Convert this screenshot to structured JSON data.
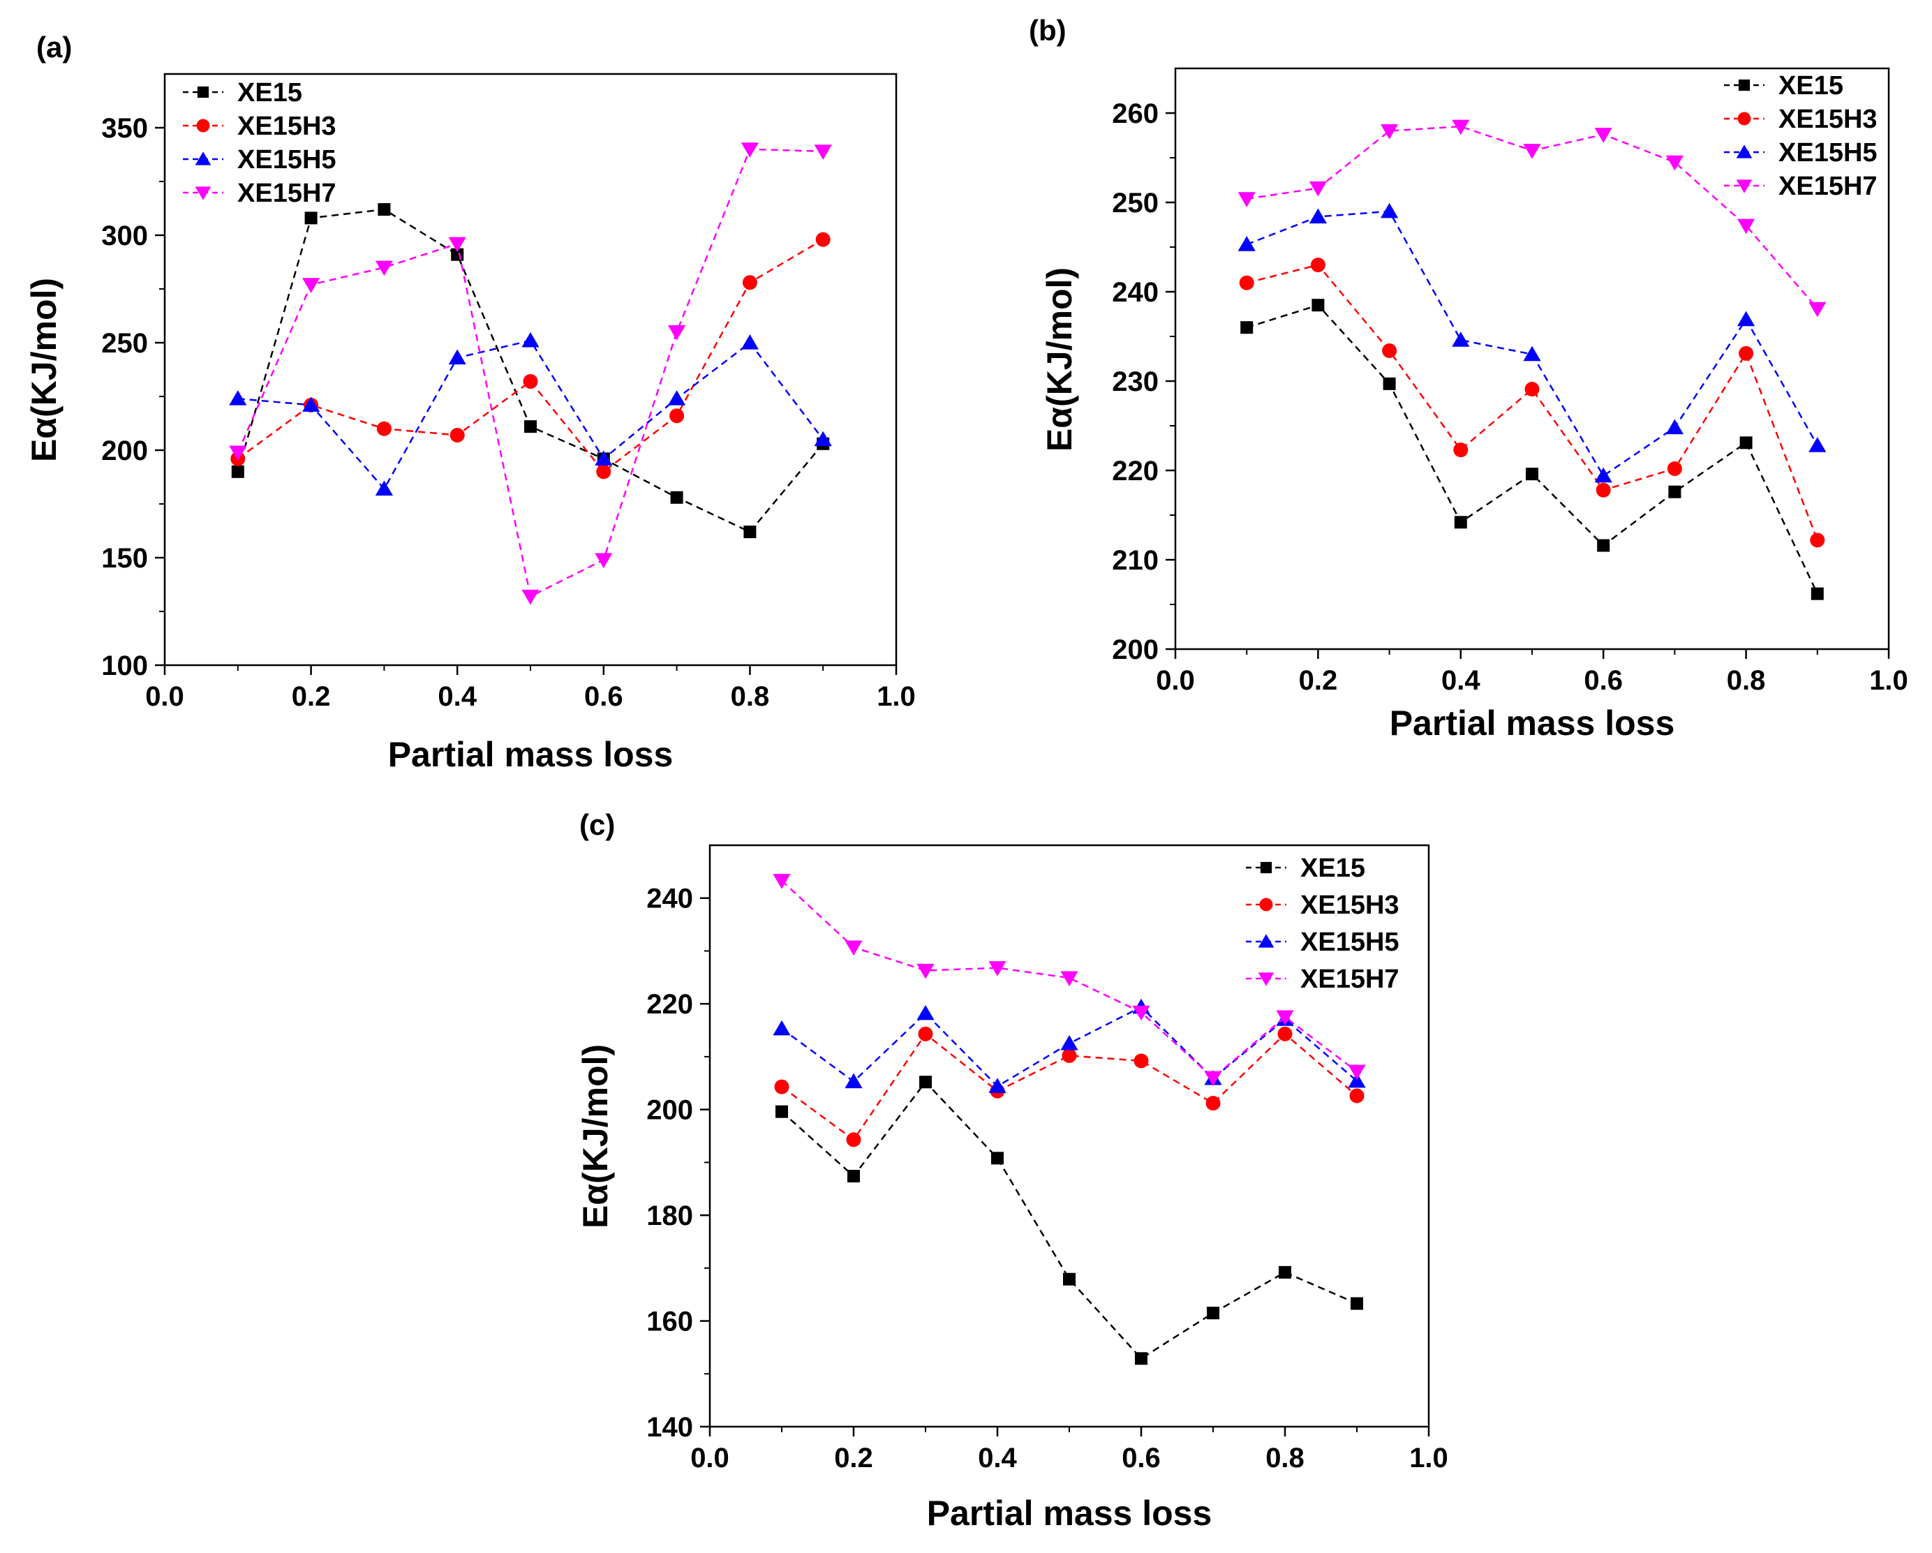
{
  "figure": {
    "panels": [
      {
        "id": "a",
        "label": "(a)"
      },
      {
        "id": "b",
        "label": "(b)"
      },
      {
        "id": "c",
        "label": "(c)"
      }
    ]
  },
  "series_styles": [
    {
      "name": "XE15",
      "color": "#000000",
      "marker": "square"
    },
    {
      "name": "XE15H3",
      "color": "#ff0000",
      "marker": "circle"
    },
    {
      "name": "XE15H5",
      "color": "#0000ff",
      "marker": "triangle-up"
    },
    {
      "name": "XE15H7",
      "color": "#ff00ff",
      "marker": "triangle-down"
    }
  ],
  "chart_data": [
    {
      "type": "line",
      "title": "(a)",
      "xlabel": "Partial mass loss",
      "ylabel": "Eα(KJ/mol)",
      "xlim": [
        0.0,
        1.0
      ],
      "ylim": [
        100,
        375
      ],
      "xticks": [
        "0.0",
        "0.2",
        "0.4",
        "0.6",
        "0.8",
        "1.0"
      ],
      "yticks": [
        "100",
        "150",
        "200",
        "250",
        "300",
        "350"
      ],
      "legend_position": "top-left",
      "x": [
        0.1,
        0.2,
        0.3,
        0.4,
        0.5,
        0.6,
        0.7,
        0.8,
        0.9
      ],
      "series": [
        {
          "name": "XE15",
          "values": [
            190,
            308,
            312,
            291,
            211,
            196,
            178,
            162,
            203
          ]
        },
        {
          "name": "XE15H3",
          "values": [
            196,
            221,
            210,
            207,
            232,
            190,
            216,
            278,
            298
          ]
        },
        {
          "name": "XE15H5",
          "values": [
            224,
            221,
            182,
            243,
            251,
            196,
            224,
            250,
            205
          ]
        },
        {
          "name": "XE15H7",
          "values": [
            199,
            277,
            285,
            296,
            132,
            149,
            255,
            340,
            339
          ]
        }
      ]
    },
    {
      "type": "line",
      "title": "(b)",
      "xlabel": "Partial mass loss",
      "ylabel": "Eα(KJ/mol)",
      "xlim": [
        0.0,
        1.0
      ],
      "ylim": [
        200,
        265
      ],
      "xticks": [
        "0.0",
        "0.2",
        "0.4",
        "0.6",
        "0.8",
        "1.0"
      ],
      "yticks": [
        "200",
        "210",
        "220",
        "230",
        "240",
        "250",
        "260"
      ],
      "legend_position": "top-right",
      "x": [
        0.1,
        0.2,
        0.3,
        0.4,
        0.5,
        0.6,
        0.7,
        0.8,
        0.9
      ],
      "series": [
        {
          "name": "XE15",
          "values": [
            236,
            238.5,
            229.7,
            214.2,
            219.6,
            211.6,
            217.6,
            223.1,
            206.2
          ]
        },
        {
          "name": "XE15H3",
          "values": [
            241,
            243,
            233.4,
            222.3,
            229.1,
            217.8,
            220.2,
            233.1,
            212.2
          ]
        },
        {
          "name": "XE15H5",
          "values": [
            245.3,
            248.4,
            249,
            234.6,
            233,
            219.4,
            224.8,
            236.9,
            222.8
          ]
        },
        {
          "name": "XE15H7",
          "values": [
            250.4,
            251.6,
            258,
            258.5,
            255.8,
            257.6,
            254.5,
            247.4,
            238.1
          ]
        }
      ]
    },
    {
      "type": "line",
      "title": "(c)",
      "xlabel": "Partial mass loss",
      "ylabel": "Eα(KJ/mol)",
      "xlim": [
        0.0,
        1.0
      ],
      "ylim": [
        140,
        250
      ],
      "xticks": [
        "0.0",
        "0.2",
        "0.4",
        "0.6",
        "0.8",
        "1.0"
      ],
      "yticks": [
        "140",
        "160",
        "180",
        "200",
        "220",
        "240"
      ],
      "legend_position": "top-right",
      "x": [
        0.1,
        0.2,
        0.3,
        0.4,
        0.5,
        0.6,
        0.7,
        0.8,
        0.9
      ],
      "series": [
        {
          "name": "XE15",
          "values": [
            199.6,
            187.4,
            205.2,
            190.8,
            167.9,
            152.9,
            161.5,
            169.2,
            163.3
          ]
        },
        {
          "name": "XE15H3",
          "values": [
            204.3,
            194.3,
            214.3,
            203.5,
            210.2,
            209.2,
            201.2,
            214.3,
            202.6
          ]
        },
        {
          "name": "XE15H5",
          "values": [
            215.3,
            205.3,
            218.2,
            204.4,
            212.5,
            219.4,
            205.9,
            217.1,
            205.4
          ]
        },
        {
          "name": "XE15H7",
          "values": [
            243.3,
            230.7,
            226.3,
            226.8,
            224.9,
            218.4,
            206,
            217.5,
            207.2
          ]
        }
      ]
    }
  ]
}
